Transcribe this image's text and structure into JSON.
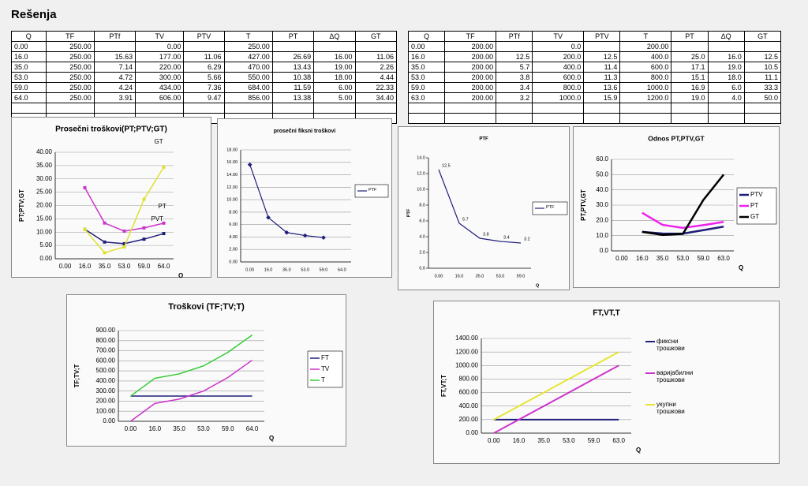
{
  "title": "Rešenja",
  "tables": [
    {
      "header": [
        "Q",
        "TF",
        "PTf",
        "TV",
        "PTV",
        "T",
        "PT",
        "ΔQ",
        "GT"
      ],
      "rows": [
        [
          "0.00",
          "250.00",
          null,
          "0.00",
          null,
          "250.00",
          null,
          null,
          null
        ],
        [
          "16.0",
          "250.00",
          "15.63",
          "177.00",
          "11.06",
          "427.00",
          "26.69",
          "16.00",
          "11.06"
        ],
        [
          "35.0",
          "250.00",
          "7.14",
          "220.00",
          "6.29",
          "470.00",
          "13.43",
          "19.00",
          "2.26"
        ],
        [
          "53.0",
          "250.00",
          "4.72",
          "300.00",
          "5.66",
          "550.00",
          "10.38",
          "18.00",
          "4.44"
        ],
        [
          "59.0",
          "250.00",
          "4.24",
          "434.00",
          "7.36",
          "684.00",
          "11.59",
          "6.00",
          "22.33"
        ],
        [
          "64.0",
          "250.00",
          "3.91",
          "606.00",
          "9.47",
          "856.00",
          "13.38",
          "5.00",
          "34.40"
        ]
      ]
    },
    {
      "header": [
        "Q",
        "TF",
        "PTf",
        "TV",
        "PTV",
        "T",
        "PT",
        "ΔQ",
        "GT"
      ],
      "rows": [
        [
          "0.00",
          "200.00",
          null,
          "0.0",
          null,
          "200.00",
          null,
          null,
          null
        ],
        [
          "16.0",
          "200.00",
          "12.5",
          "200.0",
          "12.5",
          "400.0",
          "25.0",
          "16.0",
          "12.5"
        ],
        [
          "35.0",
          "200.00",
          "5.7",
          "400.0",
          "11.4",
          "600.0",
          "17.1",
          "19.0",
          "10.5"
        ],
        [
          "53.0",
          "200.00",
          "3.8",
          "600.0",
          "11.3",
          "800.0",
          "15.1",
          "18.0",
          "11.1"
        ],
        [
          "59.0",
          "200.00",
          "3.4",
          "800.0",
          "13.6",
          "1000.0",
          "16.9",
          "6.0",
          "33.3"
        ],
        [
          "63.0",
          "200.00",
          "3.2",
          "1000.0",
          "15.9",
          "1200.0",
          "19.0",
          "4.0",
          "50.0"
        ]
      ]
    }
  ],
  "chart_data": [
    {
      "type": "line",
      "title": "Prosečni troškovi(PT;PTV;GT)",
      "y_label": "PT;PTV;GT",
      "x_label": "Q",
      "grid": true,
      "markers": true,
      "categories": [
        "0.00",
        "16.0",
        "35.0",
        "53.0",
        "59.0",
        "64.0"
      ],
      "series": [
        {
          "name": "PT",
          "color": "#cc33cc",
          "values": [
            null,
            26.69,
            13.43,
            10.38,
            11.59,
            13.38
          ]
        },
        {
          "name": "PVT",
          "color": "#1f1f7a",
          "values": [
            null,
            11.06,
            6.29,
            5.66,
            7.36,
            9.47
          ]
        },
        {
          "name": "GT",
          "color": "#e0e030",
          "values": [
            null,
            11.06,
            2.26,
            4.44,
            22.33,
            34.4
          ]
        }
      ],
      "ylim": [
        0,
        40
      ],
      "yticks": [
        {
          "value": 0,
          "label": "0.00"
        },
        {
          "value": 5,
          "label": "5.00"
        },
        {
          "value": 10,
          "label": "10.00"
        },
        {
          "value": 15,
          "label": "15.00"
        },
        {
          "value": 20,
          "label": "20.00"
        },
        {
          "value": 25,
          "label": "25.00"
        },
        {
          "value": 30,
          "label": "30.00"
        },
        {
          "value": 35,
          "label": "35.00"
        },
        {
          "value": 40,
          "label": "40.00"
        }
      ]
    },
    {
      "type": "line",
      "title": "prosečni fiksni troškovi",
      "grid": true,
      "markers": true,
      "legend": "right",
      "categories": [
        "0.00",
        "16.0",
        "35.0",
        "53.0",
        "59.0",
        "64.0"
      ],
      "series": [
        {
          "name": "PTF",
          "color": "#1f1f7a",
          "values": [
            15.63,
            7.14,
            4.72,
            4.24,
            3.91,
            null
          ]
        }
      ],
      "ylim": [
        0,
        18
      ],
      "yticks": [
        {
          "value": 0,
          "label": "0.00"
        },
        {
          "value": 2,
          "label": "2.00"
        },
        {
          "value": 4,
          "label": "4.00"
        },
        {
          "value": 6,
          "label": "6.00"
        },
        {
          "value": 8,
          "label": "8.00"
        },
        {
          "value": 10,
          "label": "10.00"
        },
        {
          "value": 12,
          "label": "12.00"
        },
        {
          "value": 14,
          "label": "14.00"
        },
        {
          "value": 16,
          "label": "16.00"
        },
        {
          "value": 18,
          "label": "18.00"
        }
      ]
    },
    {
      "type": "line",
      "title": "PTF",
      "y_label": "PTF",
      "x_label": "Q",
      "grid": false,
      "data_labels": true,
      "legend": "right",
      "categories": [
        "0.00",
        "16.0",
        "35.0",
        "53.0",
        "59.0"
      ],
      "series": [
        {
          "name": "PTF",
          "color": "#1f1f7a",
          "values": [
            12.5,
            5.7,
            3.8,
            3.4,
            3.2
          ]
        }
      ],
      "ylim": [
        0,
        14
      ],
      "yticks": [
        {
          "value": 0,
          "label": "0.0"
        },
        {
          "value": 2,
          "label": "2.0"
        },
        {
          "value": 4,
          "label": "4.0"
        },
        {
          "value": 6,
          "label": "6.0"
        },
        {
          "value": 8,
          "label": "8.0"
        },
        {
          "value": 10,
          "label": "10.0"
        },
        {
          "value": 12,
          "label": "12.0"
        },
        {
          "value": 14,
          "label": "14.0"
        }
      ]
    },
    {
      "type": "line",
      "title": "Odnos PT,PTV,GT",
      "y_label": "PT,PTV,GT",
      "x_label": "Q",
      "grid": true,
      "legend": "right",
      "categories": [
        "0.00",
        "16.0",
        "35.0",
        "53.0",
        "59.0",
        "63.0"
      ],
      "series": [
        {
          "name": "PTV",
          "color": "#1f1f7a",
          "values": [
            null,
            12.5,
            11.4,
            11.3,
            13.6,
            15.9
          ]
        },
        {
          "name": "PT",
          "color": "#ee22ee",
          "values": [
            null,
            25.0,
            17.1,
            15.1,
            16.9,
            19.0
          ]
        },
        {
          "name": "GT",
          "color": "#000000",
          "values": [
            null,
            12.5,
            10.5,
            11.1,
            33.3,
            50.0
          ]
        }
      ],
      "ylim": [
        0,
        60
      ],
      "yticks": [
        {
          "value": 0,
          "label": "0.0"
        },
        {
          "value": 10,
          "label": "10.0"
        },
        {
          "value": 20,
          "label": "20.0"
        },
        {
          "value": 30,
          "label": "30.0"
        },
        {
          "value": 40,
          "label": "40.0"
        },
        {
          "value": 50,
          "label": "50.0"
        },
        {
          "value": 60,
          "label": "60.0"
        }
      ]
    },
    {
      "type": "line",
      "title": "Troškovi (TF;TV;T)",
      "y_label": "TF;TV;T",
      "x_label": "Q",
      "grid": true,
      "legend": "right",
      "categories": [
        "0.00",
        "16.0",
        "35.0",
        "53.0",
        "59.0",
        "64.0"
      ],
      "series": [
        {
          "name": "FT",
          "color": "#1f1f7a",
          "values": [
            250,
            250,
            250,
            250,
            250,
            250
          ]
        },
        {
          "name": "TV",
          "color": "#cc33cc",
          "values": [
            0,
            177,
            220,
            300,
            434,
            606
          ]
        },
        {
          "name": "T",
          "color": "#33cc33",
          "values": [
            250,
            427,
            470,
            550,
            684,
            856
          ]
        }
      ],
      "ylim": [
        0,
        900
      ],
      "yticks": [
        {
          "value": 0,
          "label": "0.00"
        },
        {
          "value": 100,
          "label": "100.00"
        },
        {
          "value": 200,
          "label": "200.00"
        },
        {
          "value": 300,
          "label": "300.00"
        },
        {
          "value": 400,
          "label": "400.00"
        },
        {
          "value": 500,
          "label": "500.00"
        },
        {
          "value": 600,
          "label": "600.00"
        },
        {
          "value": 700,
          "label": "700.00"
        },
        {
          "value": 800,
          "label": "800.00"
        },
        {
          "value": 900,
          "label": "900.00"
        }
      ]
    },
    {
      "type": "line",
      "title": "FT,VT,T",
      "y_label": "FT,VT;T",
      "x_label": "Q",
      "grid": true,
      "legend": "right",
      "categories": [
        "0.00",
        "16.0",
        "35.0",
        "53.0",
        "59.0",
        "63.0"
      ],
      "series": [
        {
          "name": "фиксни трошкови",
          "color": "#1f1f7a",
          "values": [
            200,
            200,
            200,
            200,
            200,
            200
          ]
        },
        {
          "name": "варијабилни трошкови",
          "color": "#cc33cc",
          "values": [
            0,
            200,
            400,
            600,
            800,
            1000
          ]
        },
        {
          "name": "укупни трошкови",
          "color": "#e6e633",
          "values": [
            200,
            400,
            600,
            800,
            1000,
            1200
          ]
        }
      ],
      "ylim": [
        0,
        1400
      ],
      "yticks": [
        {
          "value": 0,
          "label": "0.00"
        },
        {
          "value": 200,
          "label": "200.00"
        },
        {
          "value": 400,
          "label": "400.00"
        },
        {
          "value": 600,
          "label": "600.00"
        },
        {
          "value": 800,
          "label": "800.00"
        },
        {
          "value": 1000,
          "label": "1000.00"
        },
        {
          "value": 1200,
          "label": "1200.00"
        },
        {
          "value": 1400,
          "label": "1400.00"
        }
      ]
    }
  ]
}
